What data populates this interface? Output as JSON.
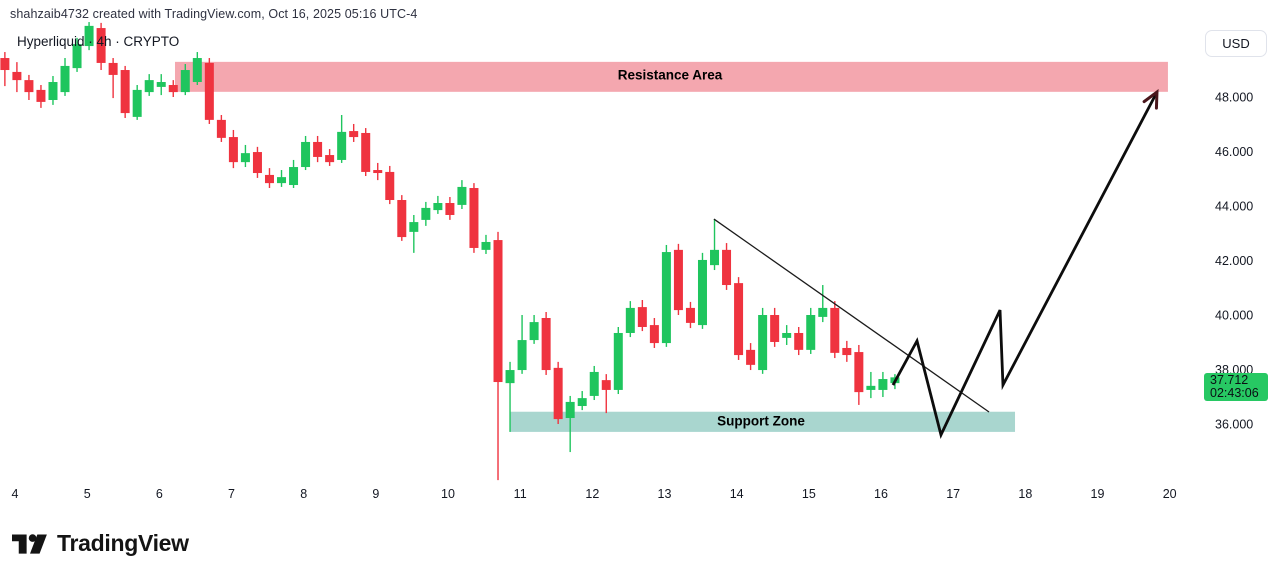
{
  "header": {
    "attribution": "shahzaib4732 created with TradingView.com, Oct 16, 2025 05:16 UTC-4",
    "symbol_legend": "Hyperliquid · 4h · CRYPTO",
    "currency_button": "USD"
  },
  "footer": {
    "brand": "TradingView"
  },
  "price_badge": {
    "price": "37.712",
    "countdown": "02:43:06"
  },
  "colors": {
    "up": "#1fc55e",
    "down": "#ef333f",
    "resistance_band": "#f4a7af",
    "support_band": "#a9d6cf",
    "badge": "#27c863",
    "trendline": "#1b1b1b",
    "projection": "#0d0d0d",
    "arrow_head": "#4a171c",
    "axis_text": "#131722"
  },
  "chart_data": {
    "type": "candlestick",
    "symbol": "Hyperliquid",
    "interval": "4h",
    "market": "CRYPTO",
    "quote_currency": "USD",
    "last_price": 37.712,
    "bar_countdown": "02:43:06",
    "x_axis": {
      "unit": "day of October 2025",
      "ticks": [
        4,
        5,
        6,
        7,
        8,
        9,
        10,
        11,
        12,
        13,
        14,
        15,
        16,
        17,
        18,
        19,
        20
      ]
    },
    "y_axis": {
      "ticks": [
        48,
        46,
        44,
        42,
        40,
        38,
        36
      ],
      "tick_format": "#.000",
      "visible_range": [
        33.9,
        50.8
      ],
      "grid": false
    },
    "first_candle_day": 3.693,
    "candles_per_day": 6,
    "candles": [
      [
        49.36,
        49.58,
        48.73,
        48.99
      ],
      [
        49.43,
        49.65,
        48.4,
        48.99
      ],
      [
        48.92,
        49.28,
        48.18,
        48.62
      ],
      [
        48.62,
        48.81,
        47.89,
        48.18
      ],
      [
        48.26,
        48.44,
        47.6,
        47.82
      ],
      [
        47.89,
        48.77,
        47.71,
        48.55
      ],
      [
        48.18,
        49.43,
        48.04,
        49.14
      ],
      [
        49.06,
        50.17,
        48.92,
        49.94
      ],
      [
        49.87,
        50.75,
        49.72,
        50.61
      ],
      [
        50.53,
        50.72,
        48.99,
        49.25
      ],
      [
        49.25,
        49.43,
        47.96,
        48.81
      ],
      [
        48.99,
        49.14,
        47.23,
        47.41
      ],
      [
        47.27,
        48.44,
        47.16,
        48.26
      ],
      [
        48.18,
        48.84,
        48.04,
        48.62
      ],
      [
        48.37,
        48.84,
        48.07,
        48.55
      ],
      [
        48.44,
        48.62,
        48.0,
        48.18
      ],
      [
        48.18,
        49.21,
        48.07,
        48.99
      ],
      [
        48.55,
        49.65,
        48.44,
        49.43
      ],
      [
        49.25,
        49.43,
        47.01,
        47.16
      ],
      [
        47.16,
        47.34,
        46.35,
        46.5
      ],
      [
        46.53,
        46.79,
        45.39,
        45.61
      ],
      [
        45.61,
        46.24,
        45.43,
        45.94
      ],
      [
        45.98,
        46.17,
        45.03,
        45.21
      ],
      [
        45.14,
        45.39,
        44.66,
        44.84
      ],
      [
        44.84,
        45.32,
        44.7,
        45.06
      ],
      [
        44.77,
        45.69,
        44.66,
        45.43
      ],
      [
        45.43,
        46.57,
        45.32,
        46.35
      ],
      [
        46.35,
        46.57,
        45.61,
        45.8
      ],
      [
        45.87,
        46.09,
        45.47,
        45.61
      ],
      [
        45.69,
        47.34,
        45.58,
        46.72
      ],
      [
        46.75,
        47.01,
        46.35,
        46.53
      ],
      [
        46.68,
        46.86,
        45.1,
        45.25
      ],
      [
        45.32,
        45.58,
        44.95,
        45.21
      ],
      [
        45.25,
        45.47,
        44.07,
        44.22
      ],
      [
        44.22,
        44.4,
        42.72,
        42.86
      ],
      [
        43.05,
        43.67,
        42.28,
        43.41
      ],
      [
        43.49,
        44.15,
        43.27,
        43.93
      ],
      [
        43.85,
        44.37,
        43.71,
        44.11
      ],
      [
        44.11,
        44.33,
        43.49,
        43.67
      ],
      [
        44.04,
        44.95,
        43.89,
        44.7
      ],
      [
        44.66,
        44.84,
        42.28,
        42.46
      ],
      [
        42.39,
        42.94,
        42.24,
        42.68
      ],
      [
        42.75,
        43.05,
        33.94,
        37.54
      ],
      [
        37.5,
        38.28,
        35.71,
        37.98
      ],
      [
        37.98,
        40.0,
        37.84,
        39.08
      ],
      [
        39.08,
        40.0,
        38.94,
        39.74
      ],
      [
        39.89,
        40.11,
        37.8,
        37.98
      ],
      [
        38.06,
        38.28,
        36.0,
        36.18
      ],
      [
        36.22,
        37.03,
        34.97,
        36.81
      ],
      [
        36.66,
        37.21,
        36.51,
        36.95
      ],
      [
        37.03,
        38.13,
        36.88,
        37.91
      ],
      [
        37.61,
        37.83,
        36.4,
        37.25
      ],
      [
        37.25,
        39.56,
        37.1,
        39.34
      ],
      [
        39.34,
        40.51,
        39.19,
        40.26
      ],
      [
        40.29,
        40.55,
        39.41,
        39.56
      ],
      [
        39.63,
        39.89,
        38.79,
        38.97
      ],
      [
        38.97,
        42.57,
        38.83,
        42.31
      ],
      [
        42.39,
        42.61,
        40.0,
        40.18
      ],
      [
        40.26,
        40.48,
        39.52,
        39.71
      ],
      [
        39.63,
        42.28,
        39.49,
        42.02
      ],
      [
        41.83,
        43.52,
        41.65,
        42.39
      ],
      [
        42.39,
        42.64,
        40.92,
        41.1
      ],
      [
        41.17,
        41.39,
        38.35,
        38.53
      ],
      [
        38.72,
        38.97,
        37.98,
        38.17
      ],
      [
        37.98,
        40.26,
        37.84,
        40.0
      ],
      [
        40.0,
        40.26,
        38.83,
        39.01
      ],
      [
        39.16,
        39.63,
        38.9,
        39.34
      ],
      [
        39.34,
        39.56,
        38.53,
        38.72
      ],
      [
        38.72,
        40.26,
        38.57,
        40.0
      ],
      [
        39.93,
        41.1,
        39.74,
        40.26
      ],
      [
        40.26,
        40.51,
        38.42,
        38.61
      ],
      [
        38.79,
        39.05,
        38.28,
        38.53
      ],
      [
        38.64,
        38.9,
        36.7,
        37.17
      ],
      [
        37.25,
        37.91,
        36.95,
        37.4
      ],
      [
        37.25,
        37.91,
        36.99,
        37.65
      ],
      [
        37.5,
        37.83,
        37.28,
        37.712
      ]
    ],
    "annotations": {
      "resistance_area": {
        "label": "Resistance Area",
        "day_start": 6.217,
        "day_end": 19.976,
        "price_top": 49.29,
        "price_bottom": 48.19,
        "label_day": 13.07,
        "label_price": 48.77
      },
      "support_zone": {
        "label": "Support Zone",
        "day_start": 10.859,
        "day_end": 17.857,
        "price_top": 36.45,
        "price_bottom": 35.71,
        "label_day": 14.34,
        "label_price": 36.11
      },
      "trendline": {
        "points": [
          [
            13.685,
            43.52
          ],
          [
            17.497,
            36.44
          ]
        ]
      },
      "projection_arrow": {
        "points": [
          [
            16.166,
            37.43
          ],
          [
            16.499,
            39.05
          ],
          [
            16.831,
            35.6
          ],
          [
            17.649,
            40.18
          ],
          [
            17.69,
            37.43
          ],
          [
            19.824,
            48.18
          ]
        ],
        "arrowhead_at_end": true
      }
    }
  }
}
